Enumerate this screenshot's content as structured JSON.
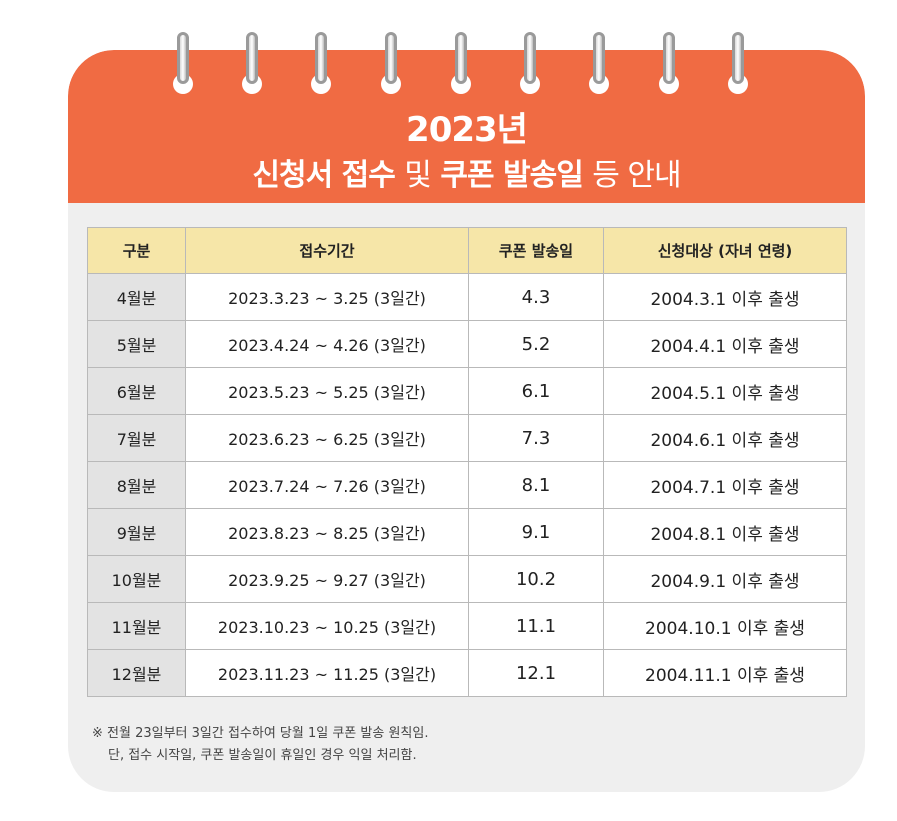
{
  "title": {
    "year_line": "2023년",
    "line2_part1": "신청서 접수",
    "line2_part2": "및",
    "line2_part3": "쿠폰 발송일",
    "line2_part4": "등 안내"
  },
  "table": {
    "headers": [
      "구분",
      "접수기간",
      "쿠폰 발송일",
      "신청대상 (자녀 연령)"
    ],
    "rows": [
      {
        "month": "4월분",
        "period": "2023.3.23 ~ 3.25 (3일간)",
        "coupon": "4.3",
        "target": "2004.3.1 이후 출생"
      },
      {
        "month": "5월분",
        "period": "2023.4.24 ~ 4.26 (3일간)",
        "coupon": "5.2",
        "target": "2004.4.1 이후 출생"
      },
      {
        "month": "6월분",
        "period": "2023.5.23 ~ 5.25 (3일간)",
        "coupon": "6.1",
        "target": "2004.5.1 이후 출생"
      },
      {
        "month": "7월분",
        "period": "2023.6.23 ~ 6.25 (3일간)",
        "coupon": "7.3",
        "target": "2004.6.1 이후 출생"
      },
      {
        "month": "8월분",
        "period": "2023.7.24 ~ 7.26 (3일간)",
        "coupon": "8.1",
        "target": "2004.7.1 이후 출생"
      },
      {
        "month": "9월분",
        "period": "2023.8.23 ~ 8.25 (3일간)",
        "coupon": "9.1",
        "target": "2004.8.1 이후 출생"
      },
      {
        "month": "10월분",
        "period": "2023.9.25 ~ 9.27 (3일간)",
        "coupon": "10.2",
        "target": "2004.9.1 이후 출생"
      },
      {
        "month": "11월분",
        "period": "2023.10.23 ~ 10.25 (3일간)",
        "coupon": "11.1",
        "target": "2004.10.1 이후 출생"
      },
      {
        "month": "12월분",
        "period": "2023.11.23 ~ 11.25 (3일간)",
        "coupon": "12.1",
        "target": "2004.11.1 이후 출생"
      }
    ]
  },
  "notes": {
    "line1": "※ 전월 23일부터 3일간 접수하여 당월 1일 쿠폰 발송 원칙임.",
    "line2": "단, 접수 시작일, 쿠폰 발송일이 휴일인 경우 익일 처리함."
  },
  "colors": {
    "header": "#f06b43",
    "table_header": "#f6e6a8",
    "month_cell": "#e3e3e3",
    "panel": "#efefef"
  }
}
